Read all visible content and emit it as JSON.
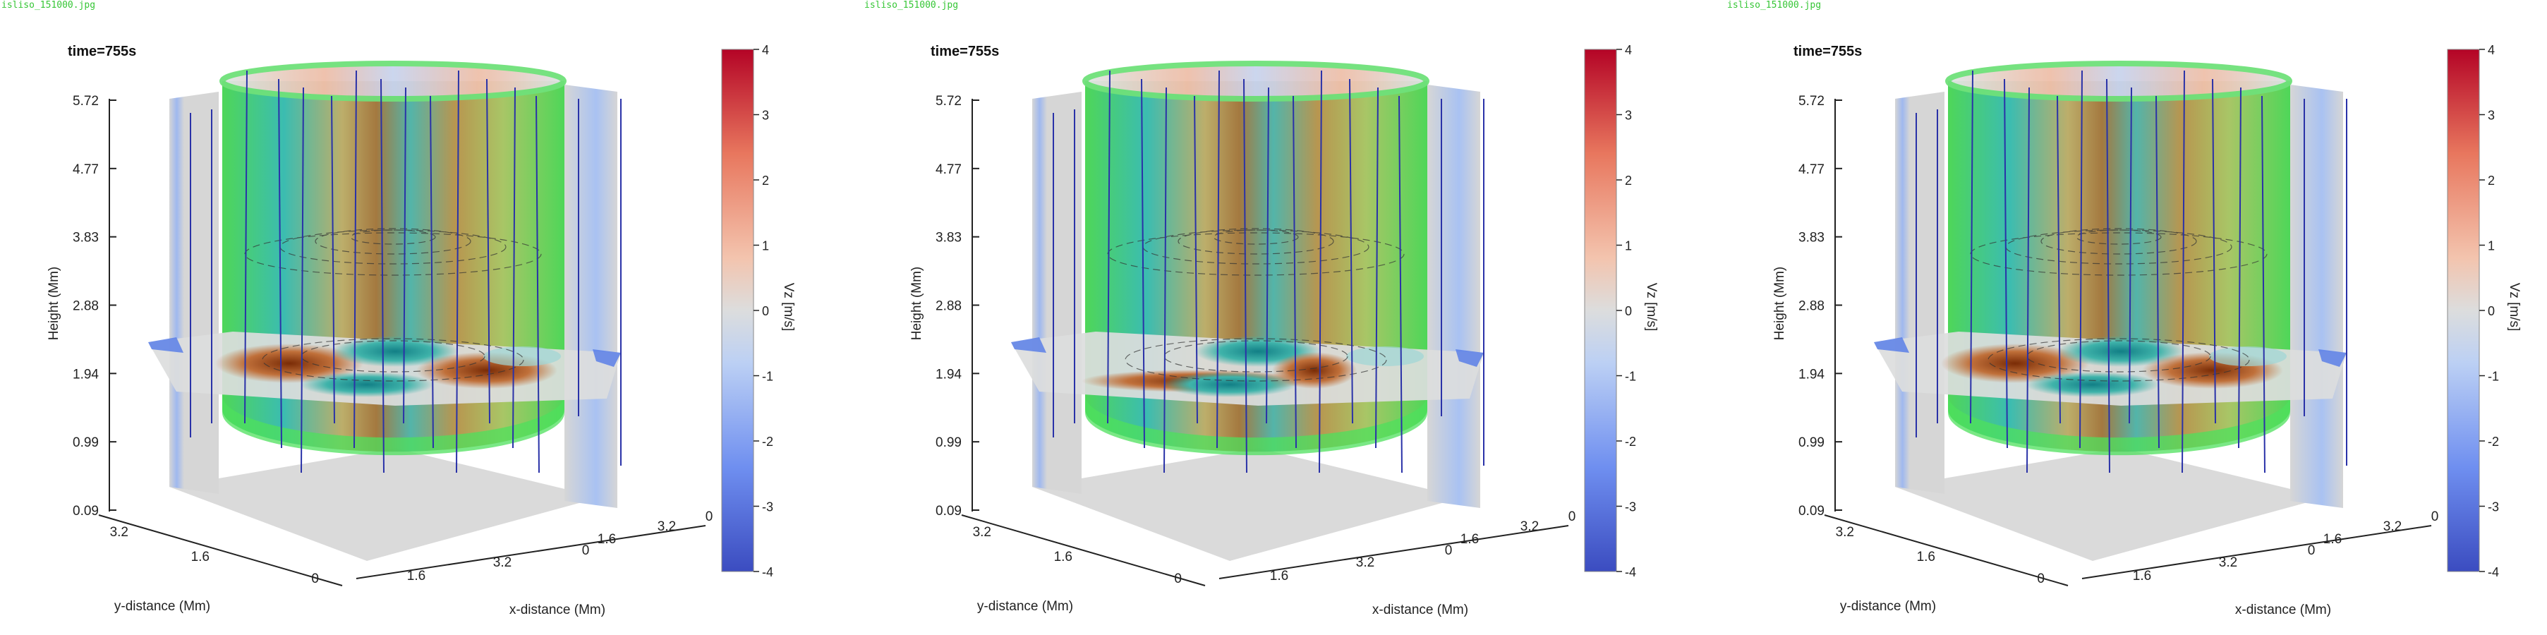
{
  "colors": {
    "cmap": [
      "#3b4cc0",
      "#6f8ff0",
      "#aac7fd",
      "#dcdddd",
      "#f5b89a",
      "#e8775e",
      "#b40426"
    ],
    "cylinder": "#3fd945",
    "fieldline": "#2a32a8",
    "panel_gray": "#d4d4d4",
    "filename": "#35c635"
  },
  "panels": [
    {
      "filename": "isliso_151000.jpg",
      "time_label": "time=",
      "time_value": "755s"
    },
    {
      "filename": "isliso_151000.jpg",
      "time_label": "time=",
      "time_value": "755s"
    },
    {
      "filename": "isliso_151000.jpg",
      "time_label": "time=",
      "time_value": "755s"
    }
  ],
  "axes": {
    "z_label": "Height (Mm)",
    "z_ticks": [
      "0.09",
      "0.99",
      "1.94",
      "2.88",
      "3.83",
      "4.77",
      "5.72"
    ],
    "y_label": "y-distance (Mm)",
    "y_ticks": [
      "3.2",
      "1.6",
      "0"
    ],
    "x_label": "x-distance (Mm)",
    "x_ticks": [
      "1.6",
      "3.2",
      "0",
      "1.6",
      "3.2",
      "0"
    ]
  },
  "colorbar": {
    "label": "Vz [m/s]",
    "ticks": [
      "4",
      "3",
      "2",
      "1",
      "0",
      "-1",
      "-2",
      "-3",
      "-4"
    ],
    "range": [
      -4,
      4
    ]
  }
}
